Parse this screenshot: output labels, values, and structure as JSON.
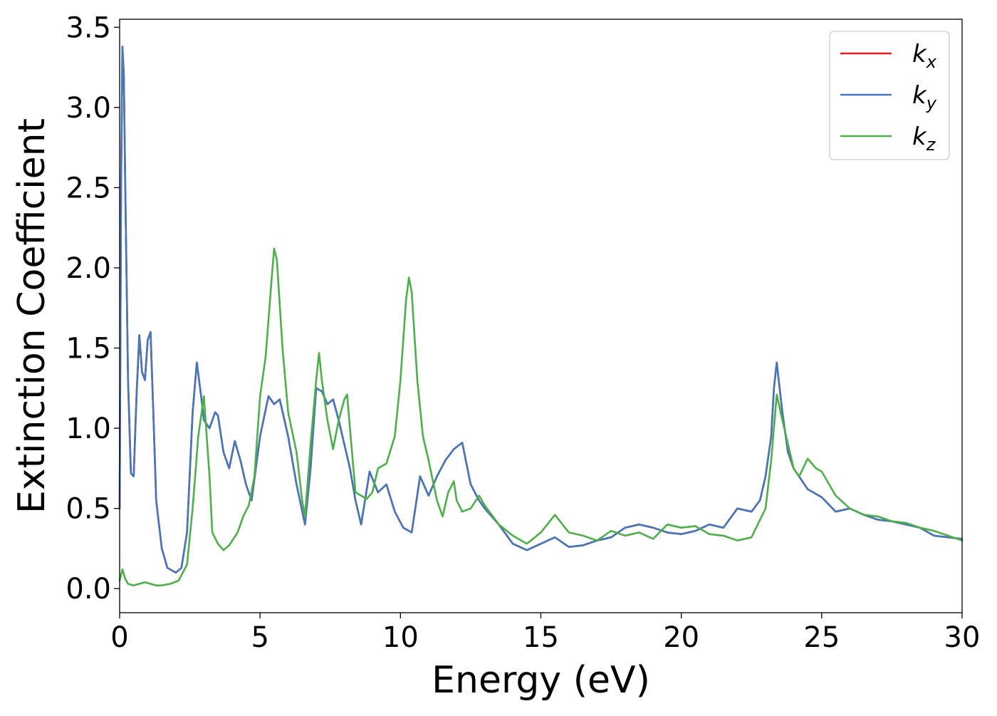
{
  "chart_data": {
    "type": "line",
    "xlabel": "Energy (eV)",
    "ylabel": "Extinction Coefficient",
    "xlim": [
      0,
      30
    ],
    "ylim": [
      -0.15,
      3.55
    ],
    "xticks": [
      0,
      5,
      10,
      15,
      20,
      25,
      30
    ],
    "yticks": [
      0.0,
      0.5,
      1.0,
      1.5,
      2.0,
      2.5,
      3.0,
      3.5
    ],
    "xtick_labels": [
      "0",
      "5",
      "10",
      "15",
      "20",
      "25",
      "30"
    ],
    "ytick_labels": [
      "0.0",
      "0.5",
      "1.0",
      "1.5",
      "2.0",
      "2.5",
      "3.0",
      "3.5"
    ],
    "grid": false,
    "legend_position": "top-right",
    "series": [
      {
        "name": "k_x",
        "legend_base": "k",
        "legend_sub": "x",
        "color": "#e41a1c",
        "x": [
          0,
          0.05,
          0.1,
          0.15,
          0.2,
          0.3,
          0.4,
          0.5,
          0.6,
          0.7,
          0.8,
          0.9,
          1.0,
          1.1,
          1.2,
          1.3,
          1.5,
          1.7,
          2.0,
          2.2,
          2.4,
          2.6,
          2.75,
          2.9,
          3.0,
          3.2,
          3.4,
          3.5,
          3.7,
          3.9,
          4.1,
          4.3,
          4.5,
          4.7,
          5.0,
          5.3,
          5.5,
          5.7,
          6.0,
          6.3,
          6.6,
          6.8,
          7.0,
          7.2,
          7.4,
          7.6,
          7.8,
          8.0,
          8.2,
          8.4,
          8.6,
          8.9,
          9.2,
          9.5,
          9.8,
          10.1,
          10.4,
          10.7,
          11.0,
          11.3,
          11.6,
          11.9,
          12.2,
          12.5,
          12.8,
          13.0,
          13.5,
          14.0,
          14.5,
          15.0,
          15.5,
          16.0,
          16.5,
          17.0,
          17.5,
          18.0,
          18.5,
          19.0,
          19.5,
          20.0,
          20.5,
          21.0,
          21.5,
          22.0,
          22.5,
          22.8,
          23.0,
          23.2,
          23.3,
          23.4,
          23.6,
          23.8,
          24.0,
          24.5,
          25.0,
          25.5,
          26.0,
          26.5,
          27.0,
          27.5,
          28.0,
          28.5,
          29.0,
          29.5,
          30.0
        ],
        "y": [
          0.5,
          2.5,
          3.38,
          3.2,
          2.5,
          1.3,
          0.72,
          0.7,
          1.2,
          1.58,
          1.35,
          1.3,
          1.55,
          1.6,
          1.1,
          0.55,
          0.25,
          0.13,
          0.1,
          0.13,
          0.35,
          1.1,
          1.41,
          1.2,
          1.05,
          1.0,
          1.1,
          1.08,
          0.85,
          0.75,
          0.92,
          0.8,
          0.65,
          0.55,
          0.95,
          1.2,
          1.15,
          1.18,
          0.95,
          0.65,
          0.4,
          0.75,
          1.25,
          1.23,
          1.15,
          1.18,
          1.05,
          0.9,
          0.75,
          0.55,
          0.4,
          0.73,
          0.6,
          0.65,
          0.48,
          0.38,
          0.35,
          0.7,
          0.58,
          0.7,
          0.8,
          0.87,
          0.91,
          0.65,
          0.55,
          0.5,
          0.4,
          0.28,
          0.24,
          0.28,
          0.32,
          0.26,
          0.27,
          0.3,
          0.32,
          0.38,
          0.4,
          0.38,
          0.35,
          0.34,
          0.36,
          0.4,
          0.38,
          0.5,
          0.48,
          0.55,
          0.7,
          0.95,
          1.25,
          1.41,
          1.1,
          0.85,
          0.75,
          0.62,
          0.57,
          0.48,
          0.5,
          0.46,
          0.43,
          0.42,
          0.4,
          0.38,
          0.33,
          0.32,
          0.31
        ]
      },
      {
        "name": "k_y",
        "legend_base": "k",
        "legend_sub": "y",
        "color": "#4477bb",
        "x": [
          0,
          0.05,
          0.1,
          0.15,
          0.2,
          0.3,
          0.4,
          0.5,
          0.6,
          0.7,
          0.8,
          0.9,
          1.0,
          1.1,
          1.2,
          1.3,
          1.5,
          1.7,
          2.0,
          2.2,
          2.4,
          2.6,
          2.75,
          2.9,
          3.0,
          3.2,
          3.4,
          3.5,
          3.7,
          3.9,
          4.1,
          4.3,
          4.5,
          4.7,
          5.0,
          5.3,
          5.5,
          5.7,
          6.0,
          6.3,
          6.6,
          6.8,
          7.0,
          7.2,
          7.4,
          7.6,
          7.8,
          8.0,
          8.2,
          8.4,
          8.6,
          8.9,
          9.2,
          9.5,
          9.8,
          10.1,
          10.4,
          10.7,
          11.0,
          11.3,
          11.6,
          11.9,
          12.2,
          12.5,
          12.8,
          13.0,
          13.5,
          14.0,
          14.5,
          15.0,
          15.5,
          16.0,
          16.5,
          17.0,
          17.5,
          18.0,
          18.5,
          19.0,
          19.5,
          20.0,
          20.5,
          21.0,
          21.5,
          22.0,
          22.5,
          22.8,
          23.0,
          23.2,
          23.3,
          23.4,
          23.6,
          23.8,
          24.0,
          24.5,
          25.0,
          25.5,
          26.0,
          26.5,
          27.0,
          27.5,
          28.0,
          28.5,
          29.0,
          29.5,
          30.0
        ],
        "y": [
          0.5,
          2.5,
          3.38,
          3.2,
          2.5,
          1.3,
          0.72,
          0.7,
          1.2,
          1.58,
          1.35,
          1.3,
          1.55,
          1.6,
          1.1,
          0.55,
          0.25,
          0.13,
          0.1,
          0.13,
          0.35,
          1.1,
          1.41,
          1.2,
          1.05,
          1.0,
          1.1,
          1.08,
          0.85,
          0.75,
          0.92,
          0.8,
          0.65,
          0.55,
          0.95,
          1.2,
          1.15,
          1.18,
          0.95,
          0.65,
          0.4,
          0.75,
          1.25,
          1.23,
          1.15,
          1.18,
          1.05,
          0.9,
          0.75,
          0.55,
          0.4,
          0.73,
          0.6,
          0.65,
          0.48,
          0.38,
          0.35,
          0.7,
          0.58,
          0.7,
          0.8,
          0.87,
          0.91,
          0.65,
          0.55,
          0.5,
          0.4,
          0.28,
          0.24,
          0.28,
          0.32,
          0.26,
          0.27,
          0.3,
          0.32,
          0.38,
          0.4,
          0.38,
          0.35,
          0.34,
          0.36,
          0.4,
          0.38,
          0.5,
          0.48,
          0.55,
          0.7,
          0.95,
          1.25,
          1.41,
          1.1,
          0.85,
          0.75,
          0.62,
          0.57,
          0.48,
          0.5,
          0.46,
          0.43,
          0.42,
          0.4,
          0.38,
          0.33,
          0.32,
          0.31
        ]
      },
      {
        "name": "k_z",
        "legend_base": "k",
        "legend_sub": "z",
        "color": "#4daf4a",
        "x": [
          0,
          0.1,
          0.2,
          0.3,
          0.5,
          0.7,
          0.9,
          1.1,
          1.3,
          1.5,
          1.8,
          2.1,
          2.4,
          2.6,
          2.8,
          3.0,
          3.2,
          3.3,
          3.5,
          3.7,
          3.9,
          4.2,
          4.4,
          4.6,
          4.8,
          5.0,
          5.2,
          5.4,
          5.5,
          5.6,
          5.8,
          6.0,
          6.3,
          6.5,
          6.6,
          6.8,
          7.0,
          7.1,
          7.2,
          7.4,
          7.6,
          7.8,
          8.0,
          8.1,
          8.2,
          8.4,
          8.6,
          8.8,
          9.0,
          9.2,
          9.5,
          9.8,
          10.0,
          10.2,
          10.3,
          10.4,
          10.6,
          10.8,
          11.0,
          11.3,
          11.5,
          11.7,
          11.9,
          12.0,
          12.2,
          12.5,
          12.8,
          13.0,
          13.5,
          14.0,
          14.5,
          15.0,
          15.5,
          16.0,
          16.5,
          17.0,
          17.5,
          18.0,
          18.5,
          19.0,
          19.5,
          20.0,
          20.5,
          21.0,
          21.5,
          22.0,
          22.5,
          23.0,
          23.2,
          23.4,
          23.6,
          23.8,
          24.0,
          24.2,
          24.5,
          24.8,
          25.0,
          25.5,
          26.0,
          26.5,
          27.0,
          27.5,
          28.0,
          28.5,
          29.0,
          29.5,
          30.0
        ],
        "y": [
          0.05,
          0.12,
          0.06,
          0.03,
          0.02,
          0.03,
          0.04,
          0.03,
          0.02,
          0.02,
          0.03,
          0.05,
          0.15,
          0.5,
          0.95,
          1.2,
          0.7,
          0.35,
          0.28,
          0.24,
          0.27,
          0.35,
          0.45,
          0.52,
          0.7,
          1.2,
          1.45,
          1.9,
          2.12,
          2.05,
          1.5,
          1.1,
          0.85,
          0.55,
          0.45,
          0.9,
          1.3,
          1.47,
          1.3,
          1.05,
          0.87,
          1.05,
          1.18,
          1.21,
          1.0,
          0.6,
          0.58,
          0.56,
          0.6,
          0.75,
          0.78,
          0.95,
          1.3,
          1.8,
          1.94,
          1.85,
          1.3,
          0.95,
          0.8,
          0.55,
          0.45,
          0.6,
          0.67,
          0.55,
          0.48,
          0.5,
          0.58,
          0.52,
          0.4,
          0.33,
          0.28,
          0.35,
          0.46,
          0.35,
          0.33,
          0.3,
          0.36,
          0.33,
          0.35,
          0.31,
          0.4,
          0.38,
          0.39,
          0.34,
          0.33,
          0.3,
          0.32,
          0.5,
          0.8,
          1.21,
          1.05,
          0.9,
          0.75,
          0.7,
          0.81,
          0.75,
          0.73,
          0.58,
          0.5,
          0.46,
          0.45,
          0.42,
          0.41,
          0.38,
          0.36,
          0.33,
          0.3
        ]
      }
    ]
  }
}
